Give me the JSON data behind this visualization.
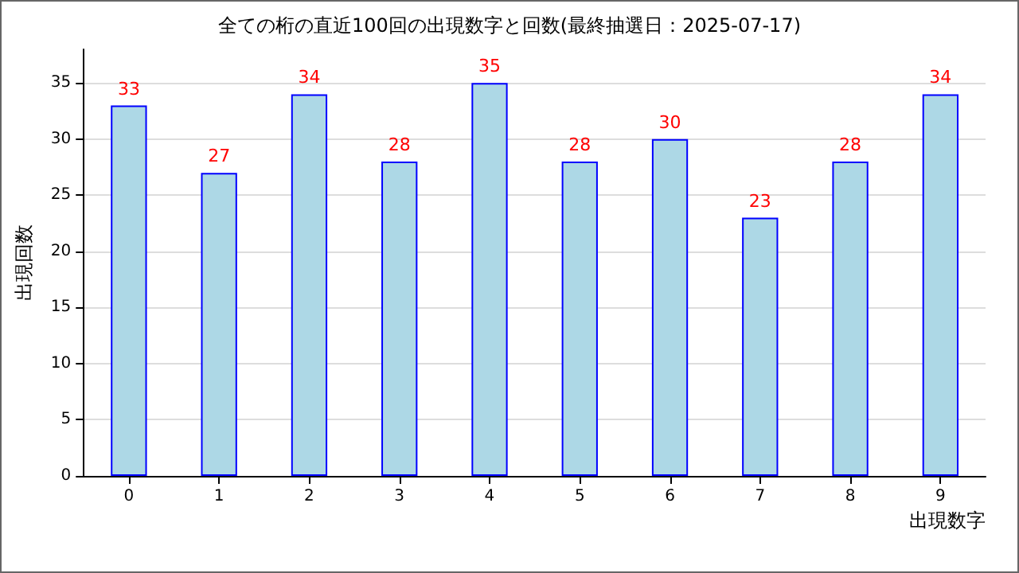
{
  "chart_data": {
    "type": "bar",
    "title": "全ての桁の直近100回の出現数字と回数(最終抽選日：2025-07-17)",
    "xlabel": "出現数字",
    "ylabel": "出現回数",
    "categories": [
      "0",
      "1",
      "2",
      "3",
      "4",
      "5",
      "6",
      "7",
      "8",
      "9"
    ],
    "values": [
      33,
      27,
      34,
      28,
      35,
      28,
      30,
      23,
      28,
      34
    ],
    "color": "#add8e6",
    "data_labels": true,
    "ylim": [
      0,
      38
    ],
    "yticks": [
      0,
      5,
      10,
      15,
      20,
      25,
      30,
      35
    ],
    "grid": "y"
  }
}
